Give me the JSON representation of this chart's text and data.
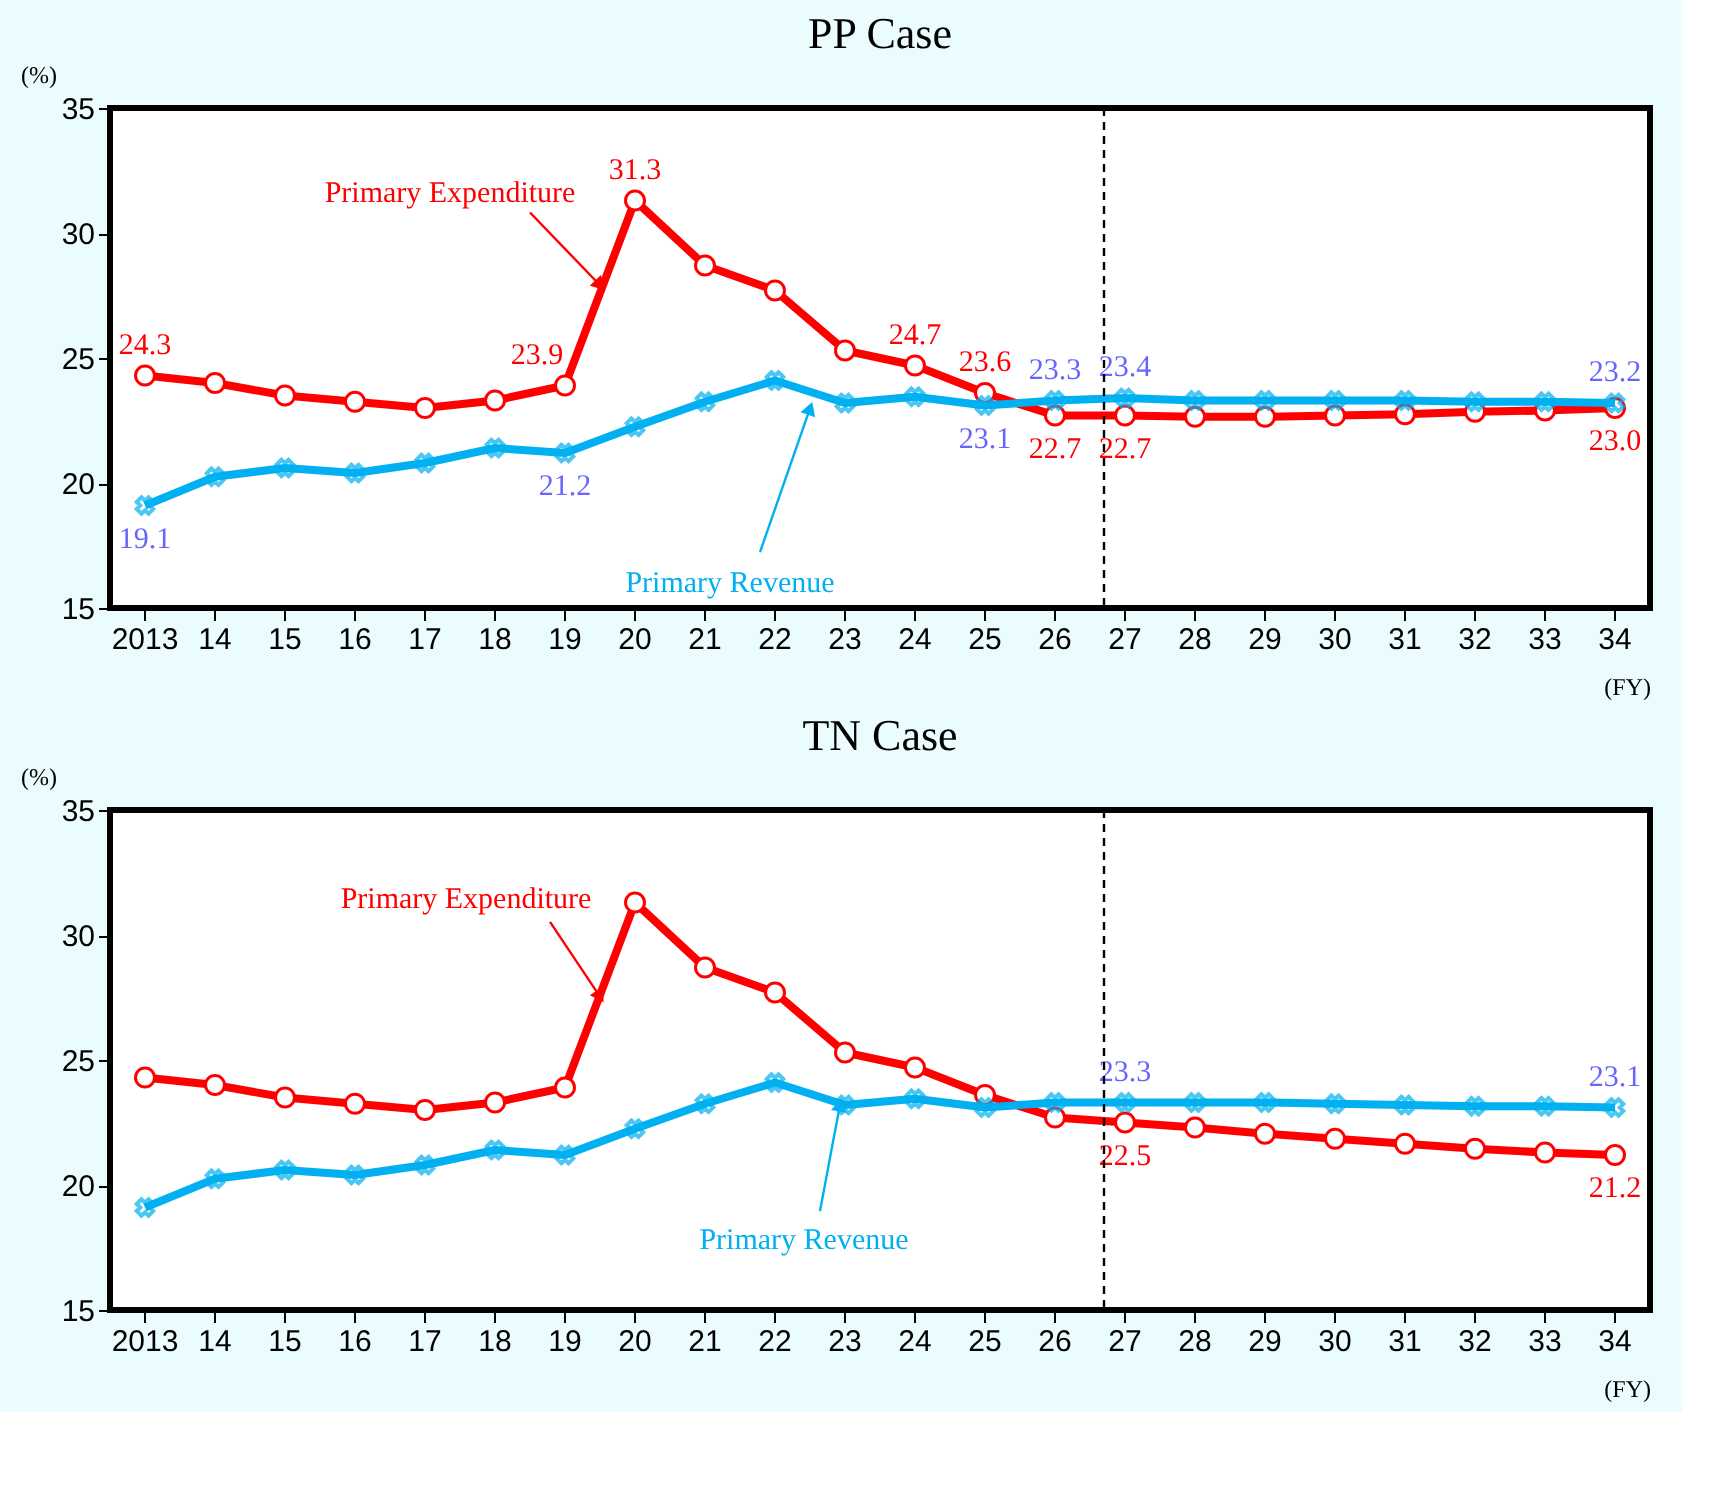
{
  "chart_data": [
    {
      "type": "line",
      "title": "PP Case",
      "ylabel": "(%)",
      "xlabel": "(FY)",
      "categories": [
        "2013",
        "14",
        "15",
        "16",
        "17",
        "18",
        "19",
        "20",
        "21",
        "22",
        "23",
        "24",
        "25",
        "26",
        "27",
        "28",
        "29",
        "30",
        "31",
        "32",
        "33",
        "34"
      ],
      "series": [
        {
          "name": "Primary Expenditure",
          "color": "#ff0000",
          "marker": "circle",
          "values": [
            24.3,
            24.0,
            23.5,
            23.25,
            23.0,
            23.3,
            23.9,
            31.3,
            28.7,
            27.7,
            25.3,
            24.7,
            23.6,
            22.7,
            22.7,
            22.65,
            22.65,
            22.7,
            22.75,
            22.85,
            22.9,
            23.0
          ],
          "value_labels": [
            "24.3",
            null,
            null,
            null,
            null,
            null,
            "23.9",
            "31.3",
            null,
            null,
            null,
            "24.7",
            "23.6",
            "22.7",
            "22.7",
            null,
            null,
            null,
            null,
            null,
            null,
            "23.0"
          ]
        },
        {
          "name": "Primary Revenue",
          "color": "#00b0f0",
          "marker": "cross",
          "values": [
            19.1,
            20.25,
            20.6,
            20.4,
            20.8,
            21.4,
            21.2,
            22.25,
            23.25,
            24.1,
            23.2,
            23.45,
            23.1,
            23.3,
            23.4,
            23.3,
            23.3,
            23.3,
            23.3,
            23.25,
            23.25,
            23.2
          ],
          "value_labels": [
            "19.1",
            null,
            null,
            null,
            null,
            null,
            "21.2",
            null,
            null,
            null,
            null,
            null,
            "23.1",
            "23.3",
            "23.4",
            null,
            null,
            null,
            null,
            null,
            null,
            "23.2"
          ]
        }
      ],
      "ylim": [
        15,
        35
      ],
      "yticks": [
        15,
        20,
        25,
        30,
        35
      ],
      "grid": false,
      "line_style": "solid",
      "ref_lines": [
        {
          "axis": "x",
          "value": "27",
          "line_style": "dashed",
          "color": "#000000"
        }
      ]
    },
    {
      "type": "line",
      "title": "TN Case",
      "ylabel": "(%)",
      "xlabel": "(FY)",
      "categories": [
        "2013",
        "14",
        "15",
        "16",
        "17",
        "18",
        "19",
        "20",
        "21",
        "22",
        "23",
        "24",
        "25",
        "26",
        "27",
        "28",
        "29",
        "30",
        "31",
        "32",
        "33",
        "34"
      ],
      "series": [
        {
          "name": "Primary Expenditure",
          "color": "#ff0000",
          "marker": "circle",
          "values": [
            24.3,
            24.0,
            23.5,
            23.25,
            23.0,
            23.3,
            23.9,
            31.3,
            28.7,
            27.7,
            25.3,
            24.7,
            23.6,
            22.7,
            22.5,
            22.3,
            22.05,
            21.85,
            21.65,
            21.45,
            21.3,
            21.2
          ],
          "value_labels": [
            null,
            null,
            null,
            null,
            null,
            null,
            null,
            null,
            null,
            null,
            null,
            null,
            null,
            null,
            "22.5",
            null,
            null,
            null,
            null,
            null,
            null,
            "21.2"
          ]
        },
        {
          "name": "Primary Revenue",
          "color": "#00b0f0",
          "marker": "cross",
          "values": [
            19.1,
            20.25,
            20.6,
            20.4,
            20.8,
            21.4,
            21.2,
            22.25,
            23.25,
            24.1,
            23.2,
            23.45,
            23.1,
            23.3,
            23.3,
            23.3,
            23.3,
            23.25,
            23.2,
            23.15,
            23.15,
            23.1
          ],
          "value_labels": [
            null,
            null,
            null,
            null,
            null,
            null,
            null,
            null,
            null,
            null,
            null,
            null,
            null,
            null,
            "23.3",
            null,
            null,
            null,
            null,
            null,
            null,
            "23.1"
          ]
        }
      ],
      "ylim": [
        15,
        35
      ],
      "yticks": [
        15,
        20,
        25,
        30,
        35
      ],
      "grid": false,
      "line_style": "solid",
      "ref_lines": [
        {
          "axis": "x",
          "value": "27",
          "line_style": "dashed",
          "color": "#000000"
        }
      ]
    }
  ]
}
